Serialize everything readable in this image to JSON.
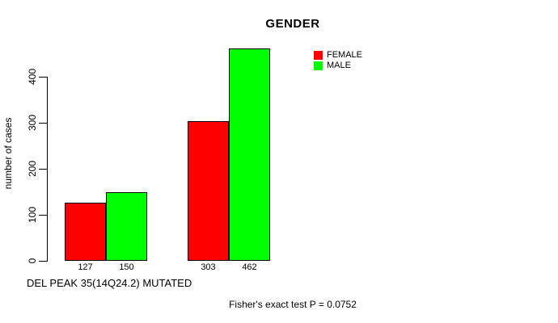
{
  "chart_data": {
    "type": "bar",
    "title": "GENDER",
    "ylabel": "number of cases",
    "xlabel": "DEL PEAK 35(14Q24.2) MUTATED",
    "categories": [
      "",
      ""
    ],
    "series": [
      {
        "name": "FEMALE",
        "color": "#ff0000",
        "values": [
          127,
          303
        ]
      },
      {
        "name": "MALE",
        "color": "#00ff00",
        "values": [
          150,
          462
        ]
      }
    ],
    "bar_value_labels": [
      [
        127,
        150
      ],
      [
        303,
        462
      ]
    ],
    "y_ticks": [
      0,
      100,
      200,
      300,
      400
    ],
    "ylim": [
      0,
      466
    ],
    "grid": false,
    "legend_position": "top-right",
    "annotation": "Fisher's exact test P = 0.0752"
  },
  "colors": {
    "background": "#ffffff",
    "axis": "#000000",
    "text": "#000000",
    "bar_border": "#000000",
    "female": "#ff0000",
    "male": "#00ff00"
  }
}
